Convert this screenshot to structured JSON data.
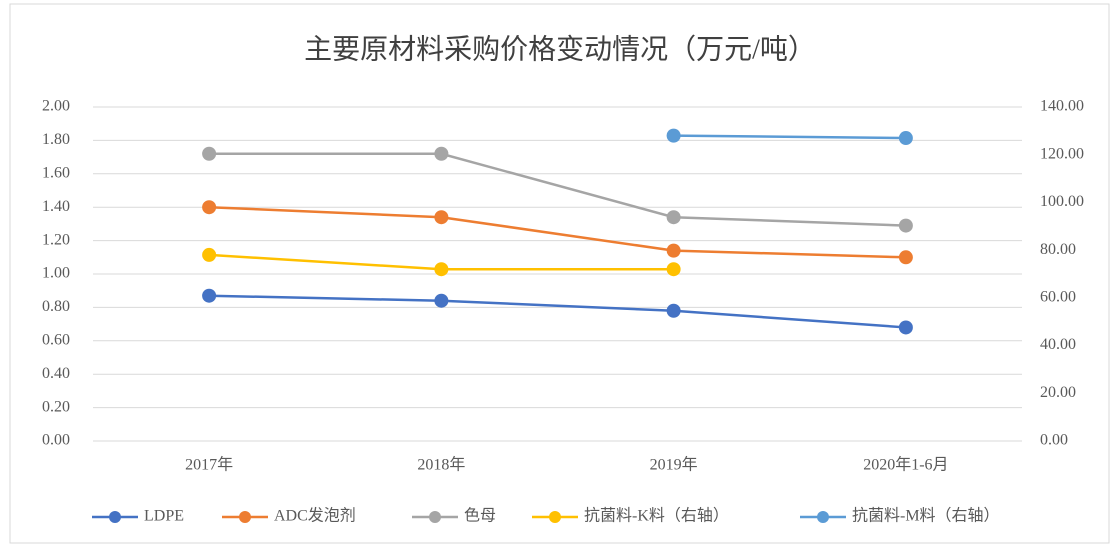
{
  "chart_data": {
    "type": "line",
    "title": "主要原材料采购价格变动情况（万元/吨）",
    "categories": [
      "2017年",
      "2018年",
      "2019年",
      "2020年1-6月"
    ],
    "series": [
      {
        "name": "LDPE",
        "color": "#4472c4",
        "values": [
          0.87,
          0.84,
          0.78,
          0.68
        ]
      },
      {
        "name": "ADC发泡剂",
        "color": "#ed7d31",
        "values": [
          1.4,
          1.34,
          1.14,
          1.1
        ]
      },
      {
        "name": "色母",
        "color": "#a5a5a5",
        "values": [
          1.72,
          1.72,
          1.34,
          1.29
        ]
      },
      {
        "name": "抗菌料-K料（右轴）",
        "color": "#ffc000",
        "axis": "y2",
        "values": [
          78,
          72,
          72,
          null
        ]
      },
      {
        "name": "抗菌料-M料（右轴）",
        "color": "#5b9bd5",
        "axis": "y2",
        "values": [
          null,
          null,
          128,
          127
        ]
      }
    ],
    "ylim": [
      0,
      2
    ],
    "yticks": [
      {
        "value": 0,
        "label": "0.00"
      },
      {
        "value": 0.2,
        "label": "0.20"
      },
      {
        "value": 0.4,
        "label": "0.40"
      },
      {
        "value": 0.6,
        "label": "0.60"
      },
      {
        "value": 0.8,
        "label": "0.80"
      },
      {
        "value": 1,
        "label": "1.00"
      },
      {
        "value": 1.2,
        "label": "1.20"
      },
      {
        "value": 1.4,
        "label": "1.40"
      },
      {
        "value": 1.6,
        "label": "1.60"
      },
      {
        "value": 1.8,
        "label": "1.80"
      },
      {
        "value": 2,
        "label": "2.00"
      }
    ],
    "y2lim": [
      0,
      140
    ],
    "y2ticks": [
      {
        "value": 0,
        "label": "0.00"
      },
      {
        "value": 20,
        "label": "20.00"
      },
      {
        "value": 40,
        "label": "40.00"
      },
      {
        "value": 60,
        "label": "60.00"
      },
      {
        "value": 80,
        "label": "80.00"
      },
      {
        "value": 100,
        "label": "100.00"
      },
      {
        "value": 120,
        "label": "120.00"
      },
      {
        "value": 140,
        "label": "140.00"
      }
    ],
    "grid": true,
    "legend": "bottom"
  }
}
